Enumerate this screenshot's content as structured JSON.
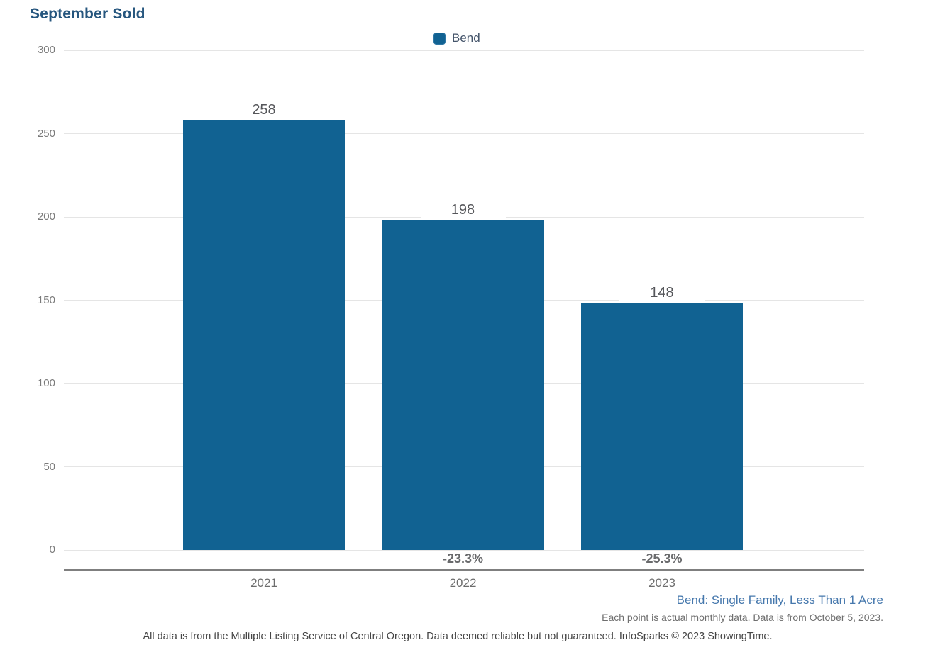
{
  "title": "September Sold",
  "legend": {
    "position": "top-center",
    "items": [
      {
        "label": "Bend",
        "color": "#116292"
      }
    ]
  },
  "chart_data": {
    "type": "bar",
    "title": "September Sold",
    "categories": [
      "2021",
      "2022",
      "2023"
    ],
    "series": [
      {
        "name": "Bend",
        "values": [
          258,
          198,
          148
        ],
        "color": "#116292"
      }
    ],
    "value_labels": [
      "258",
      "198",
      "148"
    ],
    "pct_change_labels": [
      null,
      "-23.3%",
      "-25.3%"
    ],
    "ylim": [
      0,
      300
    ],
    "yticks": [
      0,
      50,
      100,
      150,
      200,
      250,
      300
    ],
    "xlabel": "",
    "ylabel": "",
    "grid": true,
    "legend_position": "top-center"
  },
  "notes": {
    "series_note": "Bend: Single Family, Less Than 1 Acre",
    "data_note": "Each point is actual monthly data. Data is from October 5, 2023.",
    "footer": "All data is from the Multiple Listing Service of Central Oregon. Data deemed reliable but not guaranteed. InfoSparks © 2023 ShowingTime."
  },
  "colors": {
    "bar": "#116292",
    "title": "#26567e",
    "series_note": "#4678ad",
    "gridline": "#e5e5e5",
    "axis_line": "#7f7f7f",
    "tick_label": "#7a7a7a",
    "value_label": "#55565a",
    "pct_label": "#696a6c",
    "year_label": "#6d6d6d",
    "legend_label": "#44546a"
  }
}
